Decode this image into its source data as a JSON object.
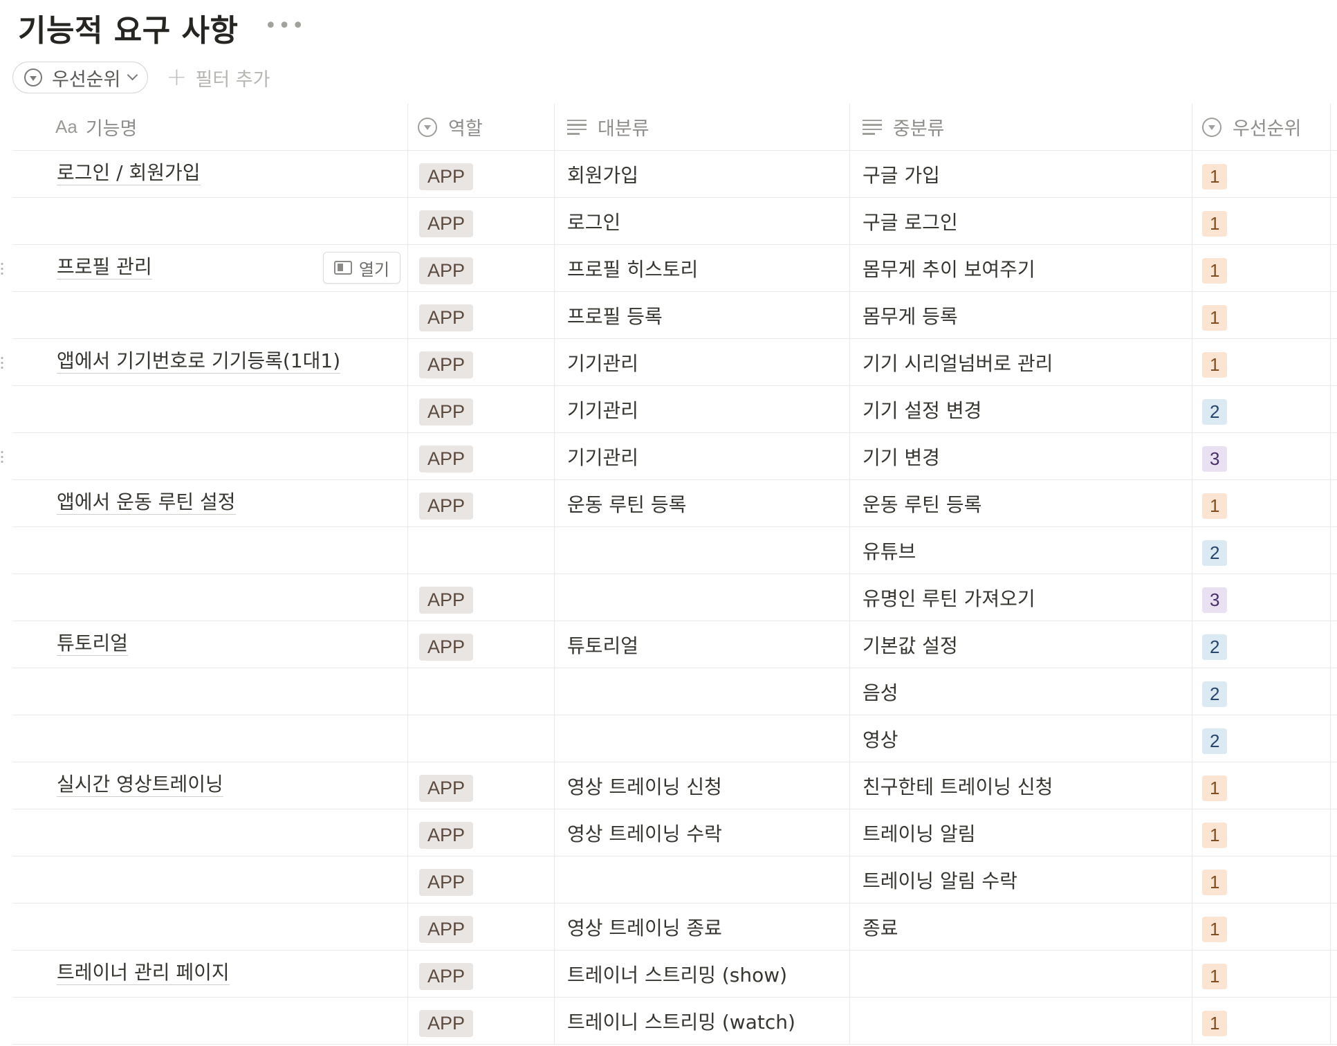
{
  "page": {
    "title": "기능적 요구 사항",
    "more_icon": "more-horizontal-icon"
  },
  "filters": {
    "chip_label": "우선순위",
    "add_filter_label": "필터 추가"
  },
  "columns": {
    "name": "기능명",
    "name_type_icon": "Aa",
    "role": "역할",
    "major": "대분류",
    "minor": "중분류",
    "priority": "우선순위"
  },
  "open_button_label": "열기",
  "priority_colors": {
    "1": "#fbe4d1",
    "2": "#dbe9f3",
    "3": "#e9e0f1"
  },
  "rows": [
    {
      "name": "로그인 / 회원가입",
      "role": "APP",
      "major": "회원가입",
      "minor": "구글  가입",
      "priority": "1"
    },
    {
      "name": "",
      "role": "APP",
      "major": "로그인",
      "minor": "구글 로그인",
      "priority": "1"
    },
    {
      "name": "프로필 관리",
      "role": "APP",
      "major": "프로필 히스토리",
      "minor": "몸무게 추이 보여주기",
      "priority": "1",
      "hover": true
    },
    {
      "name": "",
      "role": "APP",
      "major": "프로필 등록",
      "minor": "몸무게 등록",
      "priority": "1"
    },
    {
      "name": "앱에서 기기번호로 기기등록(1대1)",
      "role": "APP",
      "major": "기기관리",
      "minor": "기기 시리얼넘버로 관리",
      "priority": "1"
    },
    {
      "name": "",
      "role": "APP",
      "major": "기기관리",
      "minor": "기기 설정 변경",
      "priority": "2"
    },
    {
      "name": "",
      "role": "APP",
      "major": "기기관리",
      "minor": "기기 변경",
      "priority": "3"
    },
    {
      "name": "앱에서 운동 루틴 설정",
      "role": "APP",
      "major": "운동 루틴 등록",
      "minor": "운동 루틴 등록",
      "priority": "1"
    },
    {
      "name": "",
      "role": "",
      "major": "",
      "minor": "유튜브",
      "priority": "2"
    },
    {
      "name": "",
      "role": "APP",
      "major": "",
      "minor": "유명인 루틴 가져오기",
      "priority": "3"
    },
    {
      "name": "튜토리얼",
      "role": "APP",
      "major": "튜토리얼",
      "minor": "기본값 설정",
      "priority": "2"
    },
    {
      "name": "",
      "role": "",
      "major": "",
      "minor": "음성",
      "priority": "2"
    },
    {
      "name": "",
      "role": "",
      "major": "",
      "minor": "영상",
      "priority": "2"
    },
    {
      "name": "실시간 영상트레이닝",
      "role": "APP",
      "major": "영상 트레이닝 신청",
      "minor": "친구한테 트레이닝 신청",
      "priority": "1"
    },
    {
      "name": "",
      "role": "APP",
      "major": "영상 트레이닝 수락",
      "minor": "트레이닝 알림",
      "priority": "1"
    },
    {
      "name": "",
      "role": "APP",
      "major": "",
      "minor": "트레이닝 알림 수락",
      "priority": "1"
    },
    {
      "name": "",
      "role": "APP",
      "major": "영상 트레이닝 종료",
      "minor": "종료",
      "priority": "1"
    },
    {
      "name": "트레이너 관리 페이지",
      "role": "APP",
      "major": "트레이너 스트리밍 (show)",
      "minor": "",
      "priority": "1"
    },
    {
      "name": "",
      "role": "APP",
      "major": "트레이니 스트리밍 (watch)",
      "minor": "",
      "priority": "1"
    }
  ]
}
